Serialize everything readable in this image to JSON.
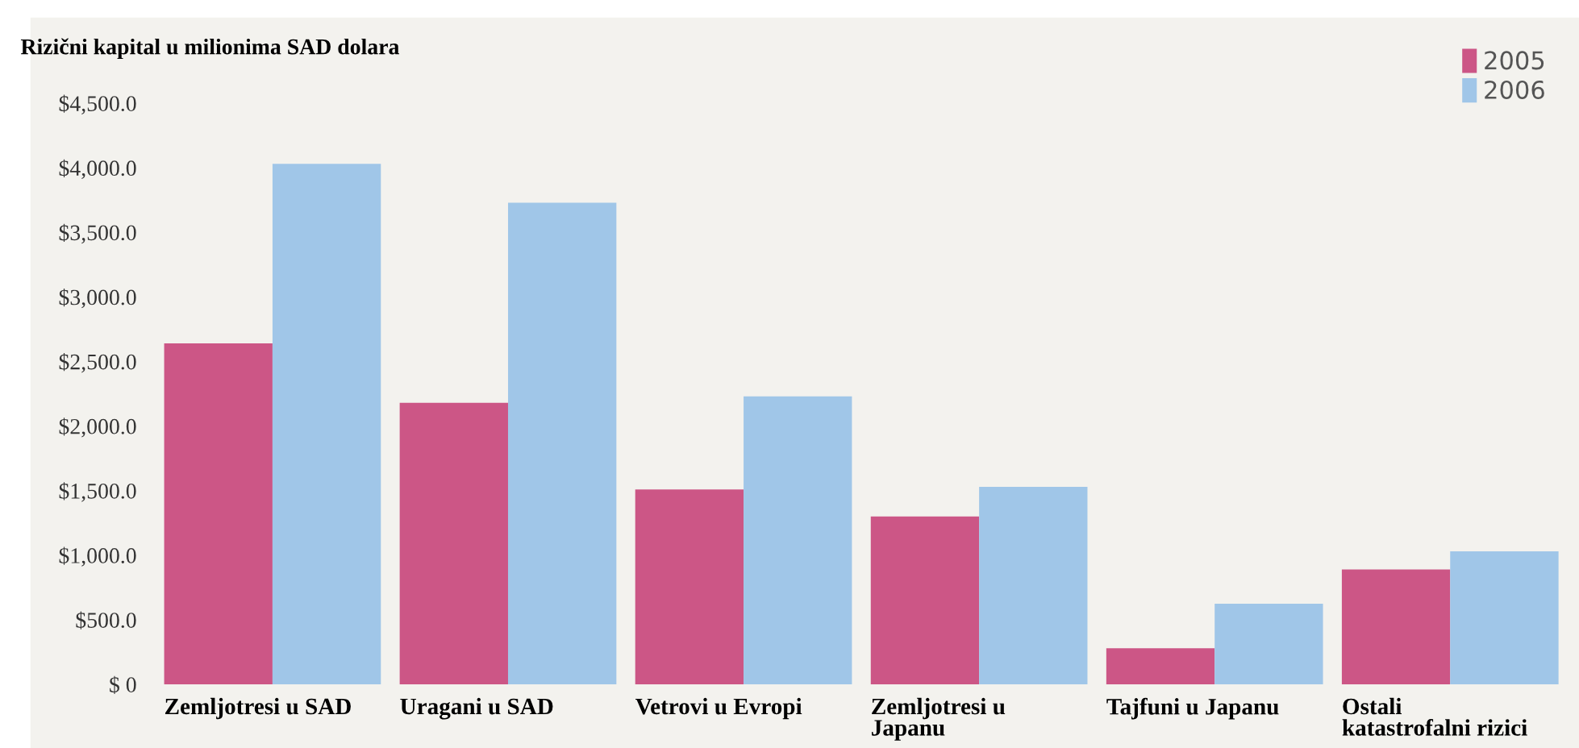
{
  "chart_data": {
    "type": "bar",
    "title": "Rizični kapital u milionima SAD dolara",
    "categories": [
      "Zemljotresi u SAD",
      "Uragani u SAD",
      "Vetrovi u Evropi",
      "Zemljotresi u\nJapanu",
      "Tajfuni u Japanu",
      "Ostali\nkatastrofalni rizici"
    ],
    "series": [
      {
        "name": "2005",
        "color": "#cc5686",
        "values": [
          2640,
          2180,
          1510,
          1300,
          280,
          890
        ]
      },
      {
        "name": "2006",
        "color": "#a0c6e8",
        "values": [
          4030,
          3730,
          2230,
          1530,
          625,
          1030
        ]
      }
    ],
    "ylim": [
      0,
      4500
    ],
    "yticks": [
      {
        "value": 0,
        "label": "$ 0"
      },
      {
        "value": 500,
        "label": "$500.0"
      },
      {
        "value": 1000,
        "label": "$1,000.0"
      },
      {
        "value": 1500,
        "label": "$1,500.0"
      },
      {
        "value": 2000,
        "label": "$2,000.0"
      },
      {
        "value": 2500,
        "label": "$2,500.0"
      },
      {
        "value": 3000,
        "label": "$3,000.0"
      },
      {
        "value": 3500,
        "label": "$3,500.0"
      },
      {
        "value": 4000,
        "label": "$4,000.0"
      },
      {
        "value": 4500,
        "label": "$4,500.0"
      }
    ],
    "legend": "top right",
    "grid": false
  }
}
